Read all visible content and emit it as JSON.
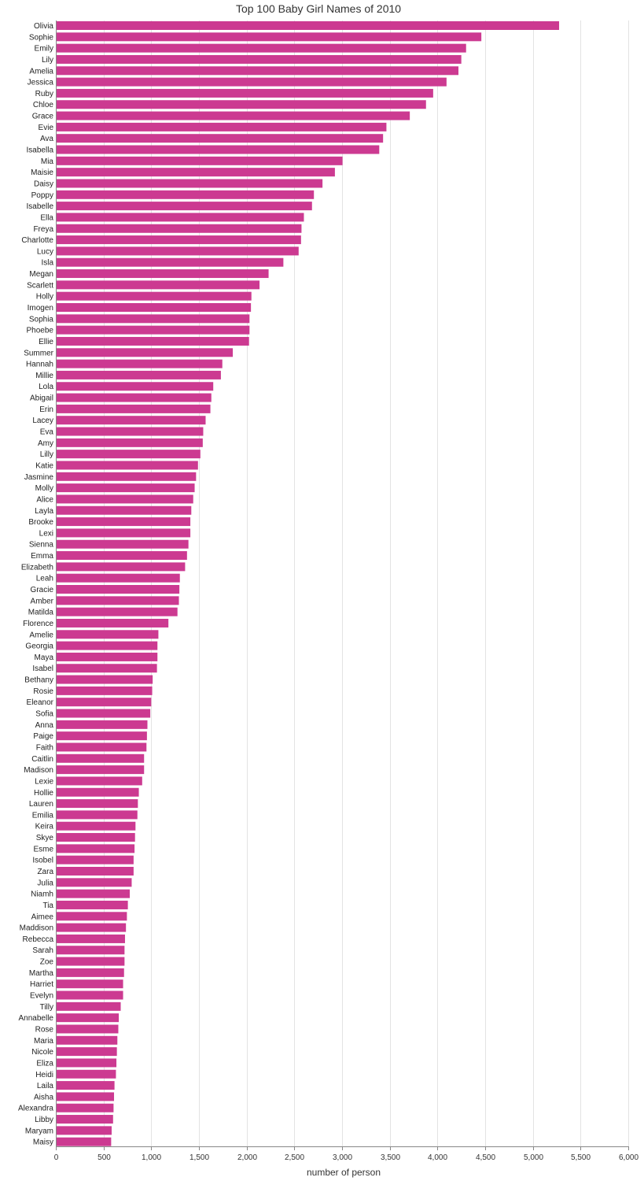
{
  "chart_data": {
    "type": "bar",
    "orientation": "horizontal",
    "title": "Top 100 Baby Girl Names of 2010",
    "xlabel": "number of person",
    "ylabel": "",
    "xlim": [
      0,
      6000
    ],
    "x_ticks": [
      0,
      500,
      1000,
      1500,
      2000,
      2500,
      3000,
      3500,
      4000,
      4500,
      5000,
      5500,
      6000
    ],
    "x_tick_labels": [
      "0",
      "500",
      "1,000",
      "1,500",
      "2,000",
      "2,500",
      "3,000",
      "3,500",
      "4,000",
      "4,500",
      "5,000",
      "5,500",
      "6,000"
    ],
    "grid": "vertical",
    "bar_color": "#cc3a91",
    "categories": [
      "Olivia",
      "Sophie",
      "Emily",
      "Lily",
      "Amelia",
      "Jessica",
      "Ruby",
      "Chloe",
      "Grace",
      "Evie",
      "Ava",
      "Isabella",
      "Mia",
      "Maisie",
      "Daisy",
      "Poppy",
      "Isabelle",
      "Ella",
      "Freya",
      "Charlotte",
      "Lucy",
      "Isla",
      "Megan",
      "Scarlett",
      "Holly",
      "Imogen",
      "Sophia",
      "Phoebe",
      "Ellie",
      "Summer",
      "Hannah",
      "Millie",
      "Lola",
      "Abigail",
      "Erin",
      "Lacey",
      "Eva",
      "Amy",
      "Lilly",
      "Katie",
      "Jasmine",
      "Molly",
      "Alice",
      "Layla",
      "Brooke",
      "Lexi",
      "Sienna",
      "Emma",
      "Elizabeth",
      "Leah",
      "Gracie",
      "Amber",
      "Matilda",
      "Florence",
      "Amelie",
      "Georgia",
      "Maya",
      "Isabel",
      "Bethany",
      "Rosie",
      "Eleanor",
      "Sofia",
      "Anna",
      "Paige",
      "Faith",
      "Caitlin",
      "Madison",
      "Lexie",
      "Hollie",
      "Lauren",
      "Emilia",
      "Keira",
      "Skye",
      "Esme",
      "Isobel",
      "Zara",
      "Julia",
      "Niamh",
      "Tia",
      "Aimee",
      "Maddison",
      "Rebecca",
      "Sarah",
      "Zoe",
      "Martha",
      "Harriet",
      "Evelyn",
      "Tilly",
      "Annabelle",
      "Rose",
      "Maria",
      "Nicole",
      "Eliza",
      "Heidi",
      "Laila",
      "Aisha",
      "Alexandra",
      "Libby",
      "Maryam",
      "Maisy"
    ],
    "values": [
      5275,
      4460,
      4300,
      4250,
      4220,
      4095,
      3955,
      3880,
      3710,
      3465,
      3430,
      3390,
      3005,
      2925,
      2795,
      2705,
      2685,
      2600,
      2575,
      2570,
      2545,
      2385,
      2230,
      2135,
      2050,
      2045,
      2030,
      2030,
      2025,
      1855,
      1745,
      1730,
      1650,
      1630,
      1620,
      1570,
      1545,
      1540,
      1515,
      1490,
      1470,
      1455,
      1440,
      1420,
      1410,
      1410,
      1390,
      1375,
      1355,
      1300,
      1295,
      1290,
      1275,
      1180,
      1075,
      1065,
      1065,
      1060,
      1015,
      1010,
      1000,
      990,
      960,
      955,
      950,
      925,
      925,
      905,
      870,
      860,
      855,
      835,
      830,
      825,
      815,
      815,
      795,
      775,
      755,
      745,
      735,
      725,
      720,
      720,
      715,
      705,
      705,
      680,
      660,
      655,
      645,
      640,
      635,
      630,
      615,
      610,
      605,
      600,
      585,
      580
    ]
  }
}
